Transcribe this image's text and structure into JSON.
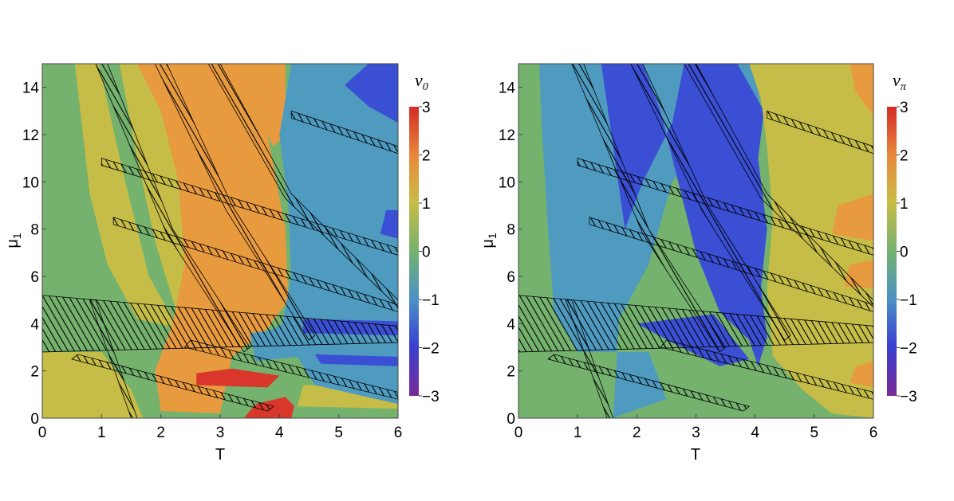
{
  "chart_data": [
    {
      "type": "heatmap",
      "title": "",
      "xlabel": "T",
      "ylabel": "μ",
      "ylabel_sub": "1",
      "xlim": [
        0,
        6
      ],
      "ylim": [
        0,
        15
      ],
      "xticks": [
        "0",
        "1",
        "2",
        "3",
        "4",
        "5",
        "6"
      ],
      "yticks": [
        "0",
        "2",
        "4",
        "6",
        "8",
        "10",
        "12",
        "14"
      ],
      "colorbar": {
        "label": "v",
        "label_sub": "0",
        "range": [
          -3,
          3
        ],
        "ticks": [
          "3",
          "2",
          "1",
          "0",
          "−1",
          "−2",
          "−3"
        ]
      },
      "regions": [
        {
          "value": 0,
          "color": "#74b26e",
          "poly": [
            [
              0,
              0
            ],
            [
              6,
              0
            ],
            [
              6,
              15
            ],
            [
              0,
              15
            ]
          ]
        },
        {
          "value": 1,
          "color": "#c5bd47",
          "poly": [
            [
              0,
              0
            ],
            [
              1.7,
              0
            ],
            [
              1.5,
              1.2
            ],
            [
              1,
              2.8
            ],
            [
              0,
              2.8
            ]
          ]
        },
        {
          "value": 1,
          "color": "#c5bd47",
          "poly": [
            [
              0.55,
              15
            ],
            [
              0.95,
              15
            ],
            [
              1.4,
              10
            ],
            [
              1.8,
              6
            ],
            [
              2.3,
              3.8
            ],
            [
              1.6,
              4.2
            ],
            [
              1.1,
              6.5
            ],
            [
              0.8,
              9.5
            ]
          ]
        },
        {
          "value": 1,
          "color": "#c5bd47",
          "poly": [
            [
              1.3,
              15
            ],
            [
              1.8,
              15
            ],
            [
              2.3,
              11
            ],
            [
              2.9,
              7
            ],
            [
              3.4,
              4.2
            ],
            [
              2.3,
              4.2
            ],
            [
              1.9,
              7.5
            ],
            [
              1.6,
              11
            ]
          ]
        },
        {
          "value": 1,
          "color": "#c5bd47",
          "poly": [
            [
              4.3,
              6
            ],
            [
              6,
              6
            ],
            [
              6,
              8.5
            ],
            [
              4.3,
              8.5
            ]
          ]
        },
        {
          "value": 1,
          "color": "#c5bd47",
          "poly": [
            [
              4.3,
              0.5
            ],
            [
              6,
              0.4
            ],
            [
              6,
              1.3
            ],
            [
              4.4,
              1.4
            ]
          ]
        },
        {
          "value": 2,
          "color": "#e89a3f",
          "poly": [
            [
              1.6,
              15
            ],
            [
              2.4,
              15
            ],
            [
              3.5,
              15
            ],
            [
              3.8,
              12
            ],
            [
              4.1,
              8
            ],
            [
              4.15,
              5
            ],
            [
              3.8,
              3.8
            ],
            [
              3.2,
              2.6
            ],
            [
              3.0,
              0.2
            ],
            [
              2.0,
              0.3
            ],
            [
              1.9,
              2.0
            ],
            [
              2.2,
              4.0
            ],
            [
              2.4,
              6.5
            ],
            [
              2.3,
              10
            ],
            [
              2.0,
              13
            ]
          ]
        },
        {
          "value": 2,
          "color": "#e89a3f",
          "poly": [
            [
              3.3,
              15
            ],
            [
              4.1,
              15
            ],
            [
              4.1,
              12
            ],
            [
              3.9,
              11.5
            ],
            [
              3.6,
              13
            ]
          ]
        },
        {
          "value": 3,
          "color": "#d9372b",
          "poly": [
            [
              3.4,
              0
            ],
            [
              4.2,
              0
            ],
            [
              4.25,
              0.5
            ],
            [
              4.1,
              0.9
            ],
            [
              3.6,
              0.6
            ]
          ]
        },
        {
          "value": 3,
          "color": "#d9372b",
          "poly": [
            [
              2.6,
              1.4
            ],
            [
              3.8,
              1.3
            ],
            [
              4.0,
              1.8
            ],
            [
              3.2,
              2.1
            ],
            [
              2.6,
              1.9
            ]
          ]
        },
        {
          "value": -1,
          "color": "#4f9bc0",
          "poly": [
            [
              4.2,
              15
            ],
            [
              6,
              15
            ],
            [
              6,
              0.6
            ],
            [
              4.6,
              1.4
            ],
            [
              4.3,
              2.6
            ],
            [
              3.6,
              3.4
            ],
            [
              4.05,
              4.0
            ],
            [
              4.2,
              6
            ],
            [
              4.15,
              9
            ],
            [
              4.0,
              12
            ]
          ]
        },
        {
          "value": -1,
          "color": "#4f9bc0",
          "poly": [
            [
              3.6,
              2.4
            ],
            [
              4.3,
              2.6
            ],
            [
              4.2,
              3.8
            ],
            [
              3.5,
              3.6
            ]
          ]
        },
        {
          "value": -2,
          "color": "#3a4fd4",
          "poly": [
            [
              5.5,
              15
            ],
            [
              6,
              15
            ],
            [
              6,
              12.5
            ],
            [
              5.5,
              13.2
            ],
            [
              5.1,
              14.1
            ]
          ]
        },
        {
          "value": -2,
          "color": "#3a4fd4",
          "poly": [
            [
              5.7,
              7.8
            ],
            [
              6,
              7.6
            ],
            [
              6,
              8.8
            ],
            [
              5.8,
              8.8
            ]
          ]
        },
        {
          "value": -2,
          "color": "#3a4fd4",
          "poly": [
            [
              4.4,
              4.2
            ],
            [
              6,
              4.1
            ],
            [
              6,
              3.5
            ],
            [
              4.4,
              3.6
            ]
          ]
        },
        {
          "value": -2,
          "color": "#3a4fd4",
          "poly": [
            [
              4.6,
              2.7
            ],
            [
              6,
              2.6
            ],
            [
              6,
              2.2
            ],
            [
              4.7,
              2.3
            ]
          ]
        }
      ]
    },
    {
      "type": "heatmap",
      "title": "",
      "xlabel": "T",
      "ylabel": "μ",
      "ylabel_sub": "1",
      "xlim": [
        0,
        6
      ],
      "ylim": [
        0,
        15
      ],
      "xticks": [
        "0",
        "1",
        "2",
        "3",
        "4",
        "5",
        "6"
      ],
      "yticks": [
        "0",
        "2",
        "4",
        "6",
        "8",
        "10",
        "12",
        "14"
      ],
      "colorbar": {
        "label": "v",
        "label_sub": "π",
        "range": [
          -3,
          3
        ],
        "ticks": [
          "3",
          "2",
          "1",
          "0",
          "−1",
          "−2",
          "−3"
        ]
      },
      "regions": [
        {
          "value": 0,
          "color": "#74b26e",
          "poly": [
            [
              0,
              0
            ],
            [
              6,
              0
            ],
            [
              6,
              15
            ],
            [
              0,
              15
            ]
          ]
        },
        {
          "value": -1,
          "color": "#4f9bc0",
          "poly": [
            [
              0.35,
              15
            ],
            [
              3.1,
              15
            ],
            [
              3.2,
              12
            ],
            [
              2.6,
              10
            ],
            [
              2.2,
              6.5
            ],
            [
              1.7,
              4.2
            ],
            [
              1.6,
              0
            ],
            [
              1.8,
              0.2
            ],
            [
              2.5,
              0.8
            ],
            [
              2.2,
              2.8
            ],
            [
              1.0,
              2.8
            ],
            [
              0.6,
              4.5
            ],
            [
              0.5,
              8
            ],
            [
              0.4,
              12
            ]
          ]
        },
        {
          "value": -1,
          "color": "#4f9bc0",
          "poly": [
            [
              2.6,
              15
            ],
            [
              4.0,
              15
            ],
            [
              4.1,
              13
            ],
            [
              3.6,
              11
            ],
            [
              3.0,
              11
            ],
            [
              2.8,
              13
            ]
          ]
        },
        {
          "value": -2,
          "color": "#3a4fd4",
          "poly": [
            [
              1.4,
              15
            ],
            [
              2.1,
              15
            ],
            [
              2.4,
              13
            ],
            [
              2.7,
              10
            ],
            [
              3.0,
              7
            ],
            [
              3.4,
              4.5
            ],
            [
              3.9,
              3.3
            ],
            [
              4.05,
              2.2
            ],
            [
              4.2,
              3.4
            ],
            [
              4.1,
              5.5
            ],
            [
              4.2,
              8
            ],
            [
              4.05,
              11
            ],
            [
              4.15,
              13
            ],
            [
              3.7,
              15
            ],
            [
              2.8,
              15
            ],
            [
              2.6,
              12.5
            ],
            [
              2.1,
              10
            ],
            [
              1.8,
              8
            ]
          ]
        },
        {
          "value": -2,
          "color": "#3a4fd4",
          "poly": [
            [
              2.0,
              4.0
            ],
            [
              3.3,
              4.4
            ],
            [
              3.9,
              2.5
            ],
            [
              3.4,
              2.2
            ],
            [
              2.6,
              3.2
            ]
          ]
        },
        {
          "value": 1,
          "color": "#c5bd47",
          "poly": [
            [
              3.9,
              15
            ],
            [
              6,
              15
            ],
            [
              6,
              0
            ],
            [
              5.3,
              0.2
            ],
            [
              4.8,
              1.2
            ],
            [
              4.3,
              2.6
            ],
            [
              4.2,
              5.5
            ],
            [
              4.3,
              8.5
            ],
            [
              4.2,
              11.5
            ],
            [
              4.1,
              13.5
            ]
          ]
        },
        {
          "value": 2,
          "color": "#e89a3f",
          "poly": [
            [
              5.6,
              15
            ],
            [
              6,
              15
            ],
            [
              6,
              12.8
            ],
            [
              5.7,
              13.8
            ]
          ]
        },
        {
          "value": 2,
          "color": "#e89a3f",
          "poly": [
            [
              5.3,
              7.8
            ],
            [
              6,
              7.5
            ],
            [
              6,
              9.5
            ],
            [
              5.4,
              9.0
            ]
          ]
        },
        {
          "value": 2,
          "color": "#e89a3f",
          "poly": [
            [
              5.5,
              5.6
            ],
            [
              6,
              5.5
            ],
            [
              6,
              6.7
            ],
            [
              5.6,
              6.5
            ]
          ]
        },
        {
          "value": 2,
          "color": "#e89a3f",
          "poly": [
            [
              5.6,
              1.5
            ],
            [
              6,
              1.3
            ],
            [
              6,
              2.4
            ],
            [
              5.7,
              2.2
            ]
          ]
        }
      ]
    }
  ]
}
